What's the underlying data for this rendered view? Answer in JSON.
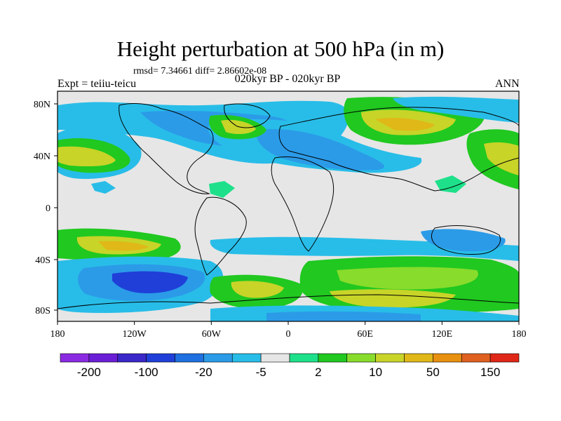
{
  "header": {
    "title": "Height perturbation at 500 hPa (in m)",
    "stats": "rmsd= 7.34661 diff= 2.86602e-08",
    "experiment": "Expt = teiiu-teicu",
    "period": "020kyr BP - 020kyr BP",
    "season": "ANN"
  },
  "axes": {
    "x_ticks": [
      "180",
      "120W",
      "60W",
      "0",
      "60E",
      "120E",
      "180"
    ],
    "y_ticks": [
      "80N",
      "40N",
      "0",
      "40S",
      "80S"
    ]
  },
  "colorbar": {
    "colors": [
      "#8a2be2",
      "#6a1fd6",
      "#3a28c8",
      "#1f3fd8",
      "#1f70e0",
      "#2b9be8",
      "#28bde8",
      "#e6e6e6",
      "#1ee08a",
      "#20c820",
      "#88dc2c",
      "#c8d428",
      "#e0b818",
      "#e89010",
      "#e06020",
      "#e02818"
    ],
    "labels": [
      "-200",
      "-100",
      "-20",
      "-5",
      "2",
      "10",
      "50",
      "150"
    ]
  },
  "colors": {
    "neutral": "#e6e6e6",
    "border": "#000000"
  }
}
